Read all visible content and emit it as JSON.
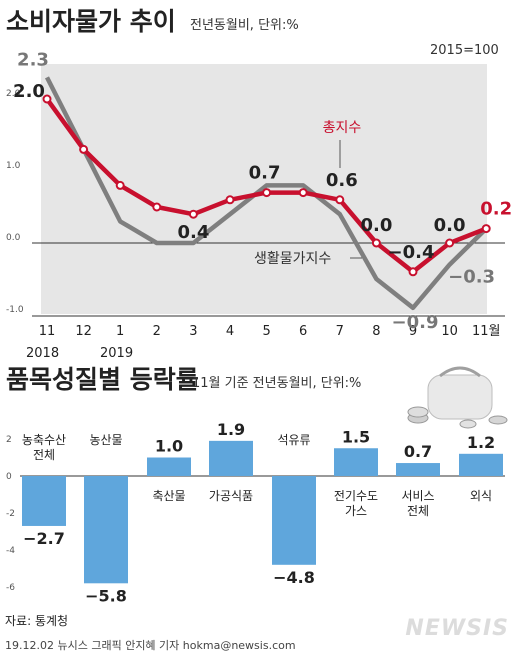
{
  "top": {
    "title": "소비자물가 추이",
    "subtitle": "전년동월비, 단위:%",
    "base_note": "2015=100",
    "year_labels": [
      "2018",
      "2019"
    ]
  },
  "bottom": {
    "title": "품목성질별 등락률",
    "subtitle": "11월 기준 전년동월비, 단위:%"
  },
  "footer": {
    "source": "자료: 통계청",
    "credit": "19.12.02 뉴시스 그래픽 안지혜 기자 hokma@newsis.com",
    "logo": "NEWSIS"
  },
  "colors": {
    "headline": "#c8102e",
    "living": "#7f7f7f",
    "bar": "#5fa6dc",
    "band": "#e6e6e6"
  },
  "chart_data": [
    {
      "type": "line",
      "x": [
        "11",
        "12",
        "1",
        "2",
        "3",
        "4",
        "5",
        "6",
        "7",
        "8",
        "9",
        "10",
        "11월"
      ],
      "ylim": [
        -1.0,
        2.5
      ],
      "yticks": [
        "2.0",
        "1.0",
        "0.0",
        "-1.0"
      ],
      "series": [
        {
          "name": "총지수",
          "values": [
            2.0,
            1.3,
            0.8,
            0.5,
            0.4,
            0.6,
            0.7,
            0.7,
            0.6,
            0.0,
            -0.4,
            0.0,
            0.2
          ],
          "labels": [
            "2.0",
            "",
            "",
            "",
            "0.4",
            "",
            "0.7",
            "",
            "0.6",
            "0.0",
            "−0.4",
            "0.0",
            "0.2"
          ]
        },
        {
          "name": "생활물가지수",
          "values": [
            2.3,
            1.3,
            0.3,
            0.0,
            0.0,
            0.4,
            0.8,
            0.8,
            0.4,
            -0.5,
            -0.9,
            -0.3,
            0.2
          ],
          "labels": [
            "2.3",
            "",
            "",
            "",
            "",
            "",
            "",
            "",
            "",
            "",
            "−0.9",
            "−0.3",
            ""
          ]
        }
      ]
    },
    {
      "type": "bar",
      "categories": [
        "농축수산 전체",
        "농산물",
        "축산물",
        "가공식품",
        "석유류",
        "전기수도 가스",
        "서비스 전체",
        "외식"
      ],
      "values": [
        -2.7,
        -5.8,
        1.0,
        1.9,
        -4.8,
        1.5,
        0.7,
        1.2
      ],
      "value_labels": [
        "−2.7",
        "−5.8",
        "1.0",
        "1.9",
        "−4.8",
        "1.5",
        "0.7",
        "1.2"
      ],
      "yticks": [
        "2",
        "0",
        "-2",
        "-4",
        "-6"
      ],
      "ylim": [
        -6,
        2
      ]
    }
  ]
}
